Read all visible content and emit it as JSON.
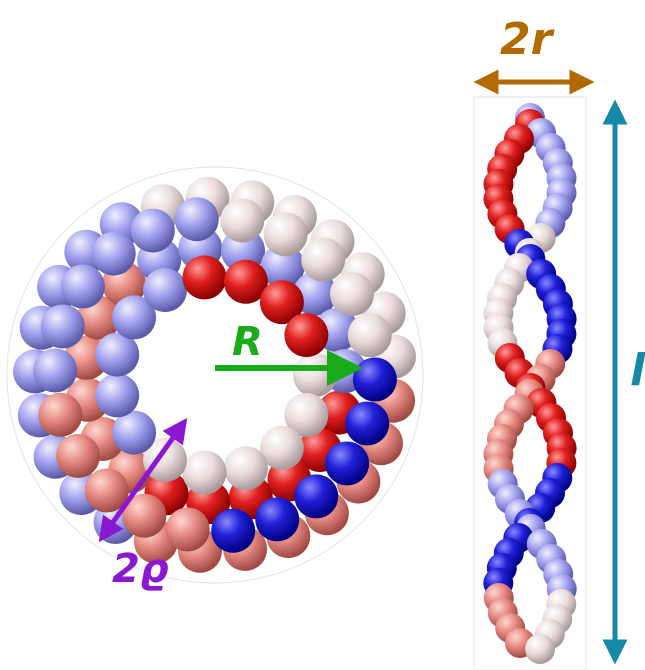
{
  "labels": {
    "diameter": "2r",
    "radius": "R",
    "tube": "2ϱ",
    "length": "l"
  }
}
